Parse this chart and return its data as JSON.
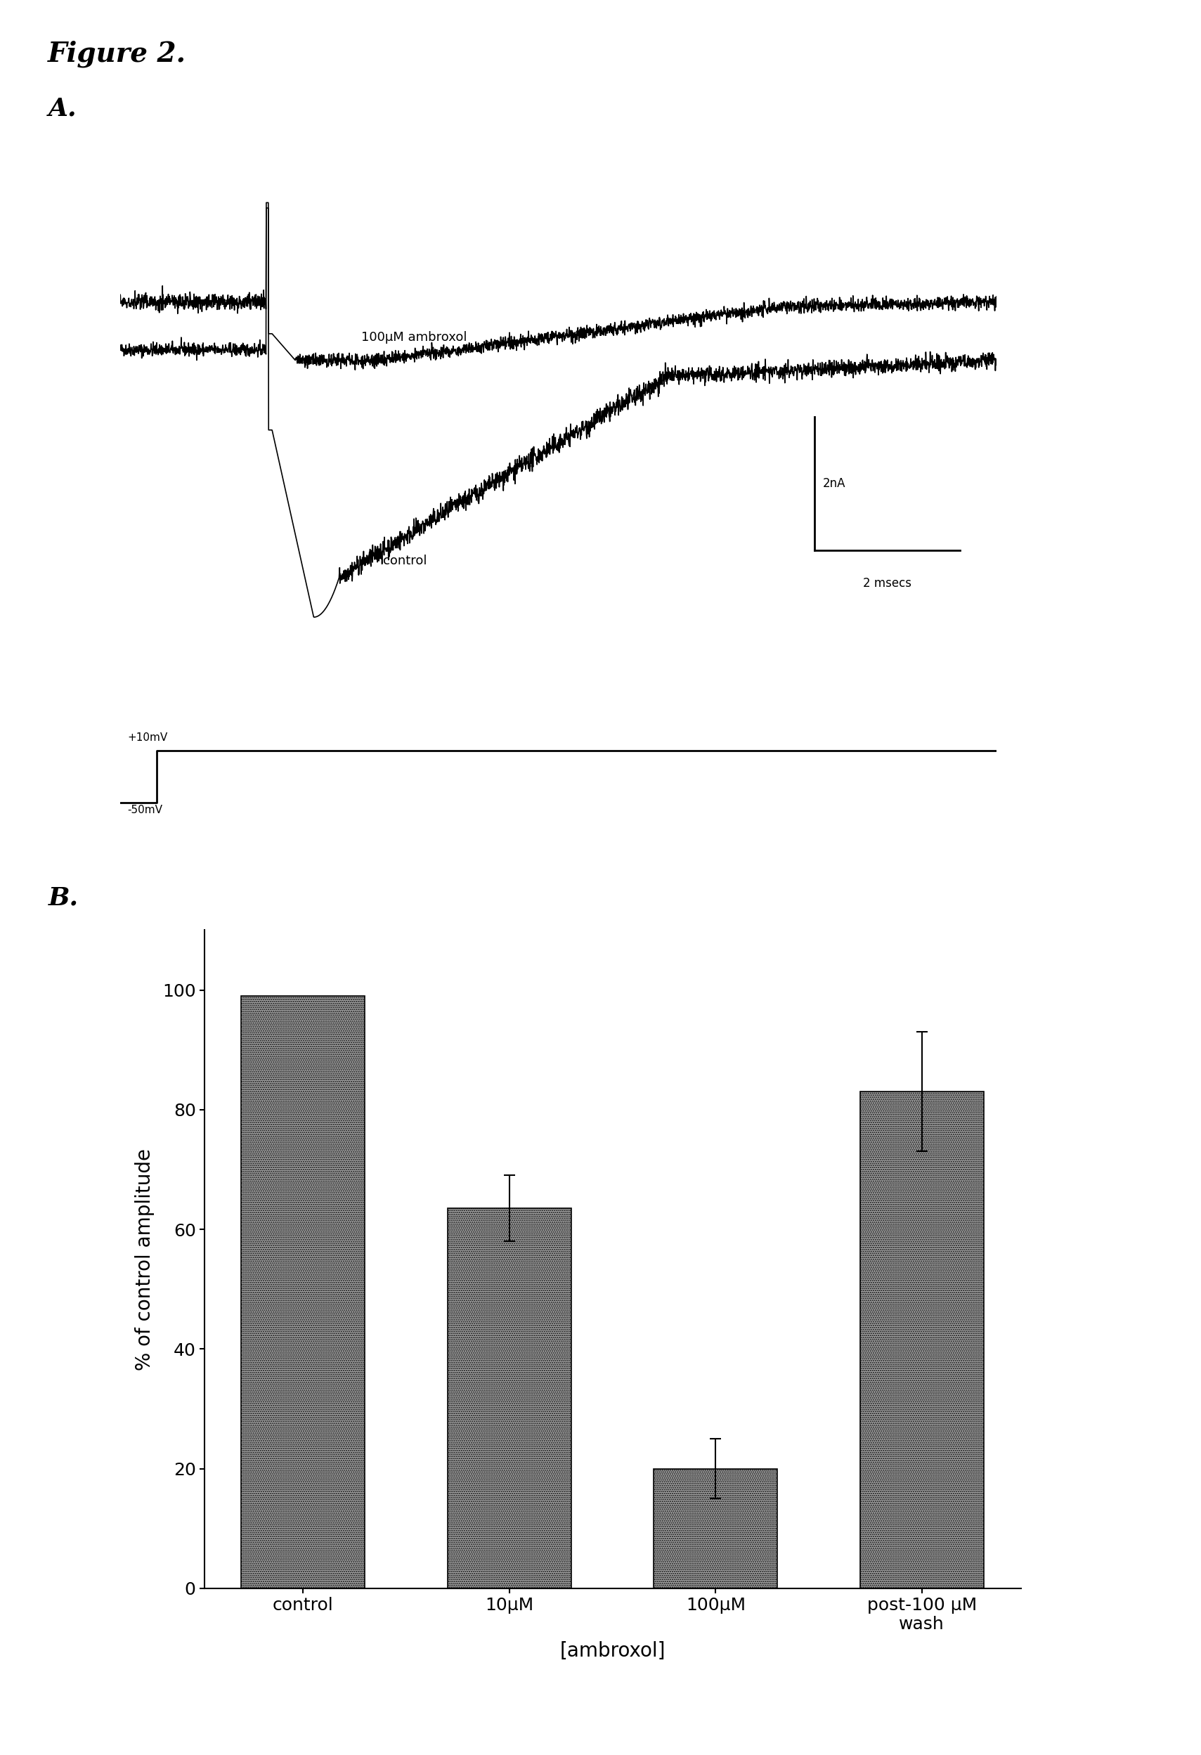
{
  "figure_title": "Figure 2.",
  "panel_A_label": "A.",
  "panel_B_label": "B.",
  "background_color": "#ffffff",
  "text_color": "#000000",
  "trace_color": "#000000",
  "ambroxol_label": "100μM ambroxol",
  "control_label": "control",
  "scale_bar_x_label": "2 msecs",
  "scale_bar_y_label": "2nA",
  "voltage_step_top": "+10mV",
  "voltage_step_bottom": "-50mV",
  "bar_values": [
    99,
    63.5,
    20,
    83
  ],
  "bar_errors": [
    0,
    5.5,
    5,
    10
  ],
  "bar_categories": [
    "control",
    "10μM",
    "100μM",
    "post-100 μM\nwash"
  ],
  "ylabel_B": "% of control amplitude",
  "xlabel_B": "[ambroxol]",
  "ylim_B": [
    0,
    110
  ],
  "yticks_B": [
    0,
    20,
    40,
    60,
    80,
    100
  ],
  "title_fontsize": 28,
  "label_fontsize": 26,
  "tick_fontsize": 18,
  "axis_label_fontsize": 20
}
